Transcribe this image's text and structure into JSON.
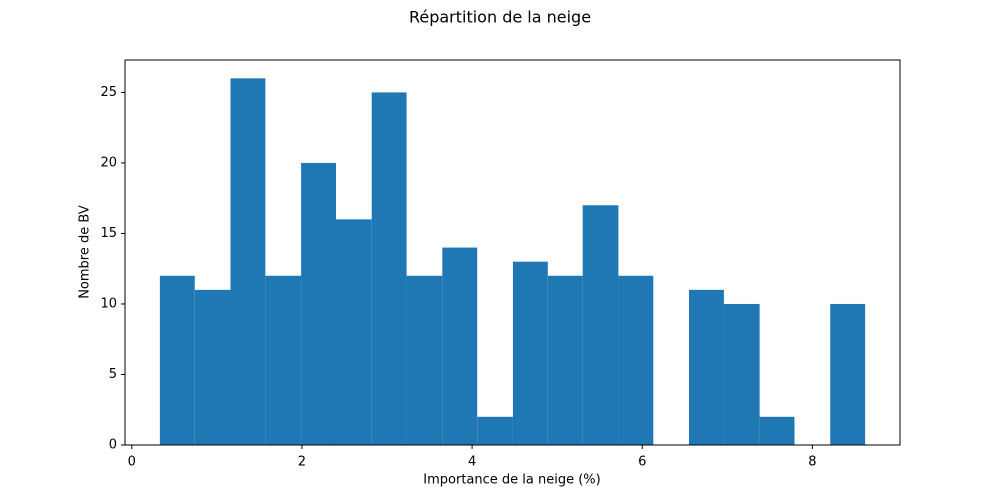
{
  "chart_data": {
    "type": "histogram",
    "title": "Répartition de la neige",
    "xlabel": "Importance de la neige (%)",
    "ylabel": "Nombre de BV",
    "bins": [
      0.33,
      0.74,
      1.16,
      1.57,
      1.99,
      2.4,
      2.82,
      3.23,
      3.65,
      4.06,
      4.48,
      4.89,
      5.3,
      5.72,
      6.13,
      6.55,
      6.96,
      7.38,
      7.79,
      8.21,
      8.62
    ],
    "values": [
      12,
      11,
      26,
      12,
      20,
      16,
      25,
      12,
      14,
      2,
      13,
      12,
      17,
      12,
      0,
      11,
      10,
      2,
      0,
      10
    ],
    "color": "#1f77b4",
    "xlim": [
      -0.08,
      9.03
    ],
    "xticks": [
      0,
      2,
      4,
      6,
      8
    ],
    "ylim": [
      0,
      27.3
    ],
    "yticks": [
      0,
      5,
      10,
      15,
      20,
      25
    ]
  }
}
